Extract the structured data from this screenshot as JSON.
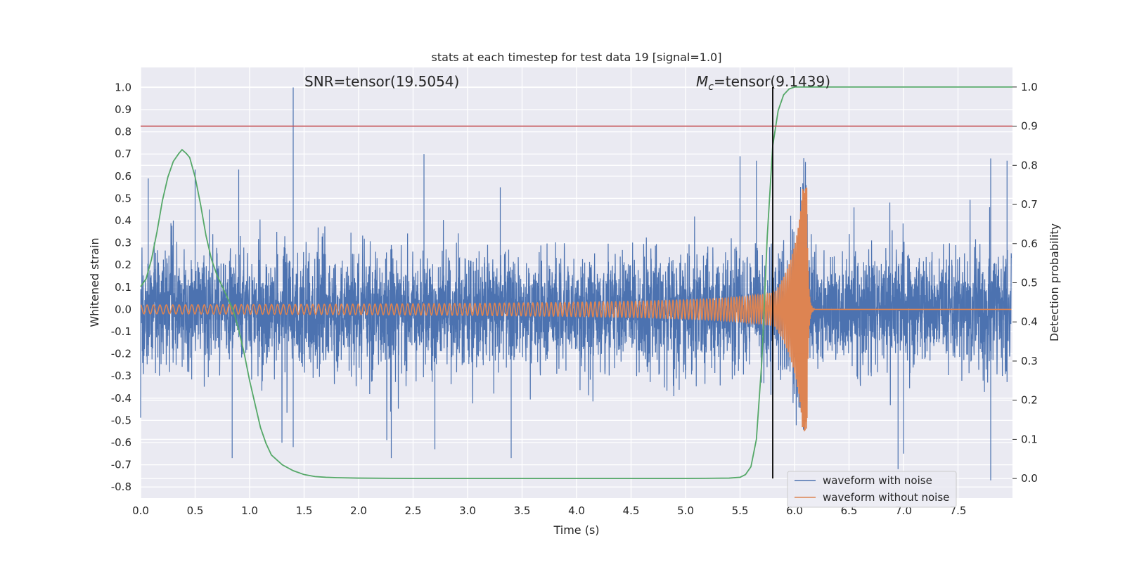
{
  "chart_data": {
    "type": "line",
    "title": "stats at each timestep for test data 19 [signal=1.0]",
    "xlabel": "Time (s)",
    "ylabel": "Whitened strain",
    "ylabel_right": "Detection probability",
    "xlim": [
      0.0,
      8.0
    ],
    "ylim": [
      -0.85,
      1.09
    ],
    "ylim_right": [
      -0.05,
      1.05
    ],
    "x_ticks": [
      "0.0",
      "0.5",
      "1.0",
      "1.5",
      "2.0",
      "2.5",
      "3.0",
      "3.5",
      "4.0",
      "4.5",
      "5.0",
      "5.5",
      "6.0",
      "6.5",
      "7.0",
      "7.5"
    ],
    "y_ticks": [
      "-0.8",
      "-0.7",
      "-0.6",
      "-0.5",
      "-0.4",
      "-0.3",
      "-0.2",
      "-0.1",
      "0.0",
      "0.1",
      "0.2",
      "0.3",
      "0.4",
      "0.5",
      "0.6",
      "0.7",
      "0.8",
      "0.9",
      "1.0"
    ],
    "y_right_ticks": [
      "0.0",
      "0.1",
      "0.2",
      "0.3",
      "0.4",
      "0.5",
      "0.6",
      "0.7",
      "0.8",
      "0.9",
      "1.0"
    ],
    "annotations": {
      "snr": "SNR=tensor(19.5054)",
      "mc_symbol": "M",
      "mc_subscript": "c",
      "mc_value": "=tensor(9.1439)"
    },
    "threshold_line": {
      "axis": "right",
      "y": 0.9,
      "color": "#c44e52"
    },
    "vertical_line": {
      "x": 5.8,
      "color": "#000000"
    },
    "grid": true,
    "legend_position": "bottom-right",
    "series": [
      {
        "name": "waveform with noise",
        "color": "#4c72b0",
        "axis": "left",
        "noise_amplitude": 0.22,
        "peaks": [
          [
            0.07,
            0.59
          ],
          [
            0.3,
            0.4
          ],
          [
            0.5,
            0.63
          ],
          [
            0.63,
            0.45
          ],
          [
            0.9,
            0.63
          ],
          [
            1.4,
            1.0
          ],
          [
            2.6,
            0.7
          ],
          [
            3.3,
            0.55
          ],
          [
            5.5,
            0.69
          ],
          [
            5.65,
            0.67
          ],
          [
            7.8,
            0.68
          ],
          [
            7.95,
            0.67
          ],
          [
            0.84,
            -0.67
          ],
          [
            1.4,
            -0.62
          ],
          [
            2.3,
            -0.67
          ],
          [
            2.7,
            -0.63
          ],
          [
            3.4,
            -0.67
          ],
          [
            6.95,
            -0.72
          ],
          [
            7.0,
            -0.65
          ],
          [
            7.8,
            -0.77
          ]
        ]
      },
      {
        "name": "waveform without noise",
        "color": "#dd8452",
        "axis": "left",
        "x_start": 0.0,
        "merger_time": 6.12,
        "peak_amplitude": 0.55
      },
      {
        "name": "",
        "color": "#55a868",
        "axis": "right",
        "x": [
          0.0,
          0.05,
          0.1,
          0.15,
          0.2,
          0.25,
          0.3,
          0.35,
          0.38,
          0.42,
          0.45,
          0.5,
          0.55,
          0.6,
          0.65,
          0.7,
          0.75,
          0.8,
          0.85,
          0.9,
          0.95,
          1.0,
          1.05,
          1.1,
          1.15,
          1.2,
          1.3,
          1.4,
          1.5,
          1.6,
          1.7,
          1.8,
          2.0,
          2.5,
          3.0,
          4.0,
          5.0,
          5.4,
          5.5,
          5.55,
          5.6,
          5.65,
          5.7,
          5.75,
          5.8,
          5.85,
          5.9,
          5.95,
          6.0,
          6.1,
          6.5,
          7.0,
          7.5,
          8.0
        ],
        "y": [
          0.49,
          0.51,
          0.56,
          0.63,
          0.71,
          0.77,
          0.81,
          0.83,
          0.84,
          0.83,
          0.82,
          0.77,
          0.7,
          0.62,
          0.56,
          0.52,
          0.49,
          0.46,
          0.43,
          0.38,
          0.32,
          0.25,
          0.19,
          0.13,
          0.09,
          0.06,
          0.035,
          0.02,
          0.01,
          0.005,
          0.003,
          0.002,
          0.001,
          0.0,
          0.0,
          0.0,
          0.0,
          0.001,
          0.003,
          0.01,
          0.03,
          0.1,
          0.3,
          0.62,
          0.85,
          0.94,
          0.98,
          0.995,
          1.0,
          1.0,
          1.0,
          1.0,
          1.0,
          1.0
        ]
      }
    ]
  }
}
